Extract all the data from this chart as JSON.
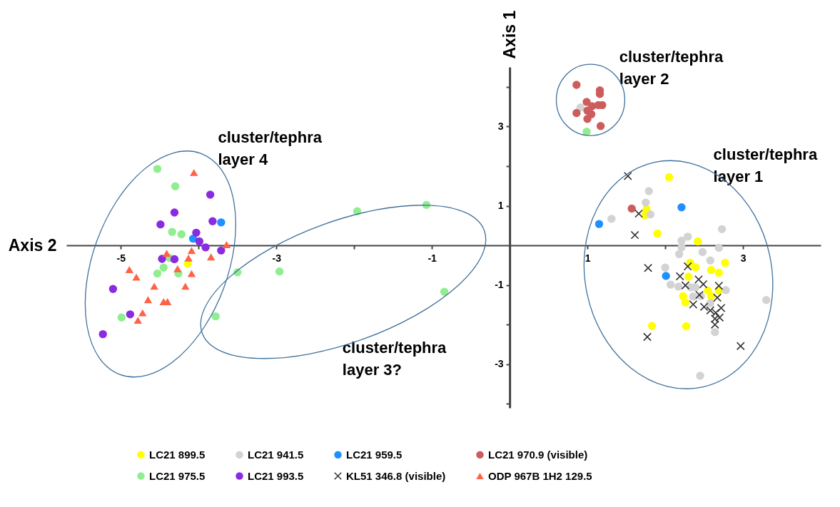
{
  "chart_data": {
    "type": "scatter",
    "xlabel": "Axis 2",
    "ylabel": "Axis 1",
    "xlim": [
      -5.7,
      4
    ],
    "ylim": [
      -4.1,
      4.5
    ],
    "xticks": [
      -5,
      {
        "value": -4,
        "label": null
      },
      -3,
      {
        "value": -2,
        "label": null
      },
      -1,
      1,
      {
        "value": 2,
        "label": null
      },
      3
    ],
    "yticks": [
      {
        "value": -4,
        "label": null
      },
      -3,
      {
        "value": -2,
        "label": null
      },
      -1,
      1,
      {
        "value": 2,
        "label": null
      },
      3,
      {
        "value": 4,
        "label": null
      }
    ],
    "grid": false,
    "legend": "bottom",
    "annotations": [
      "cluster/tephra layer 2",
      "cluster/tephra layer 1",
      "cluster/tephra layer 4",
      "cluster/tephra layer 3?"
    ],
    "series": [
      {
        "name": "LC21 899.5",
        "color": "#ffff00",
        "marker": "circle",
        "x": [
          -4.14,
          2.05,
          1.76,
          1.74,
          1.9,
          2.42,
          2.32,
          2.39,
          2.77,
          2.59,
          2.69,
          2.3,
          2.55,
          2.69,
          2.59,
          2.23,
          2.26,
          1.83,
          2.27
        ],
        "values": [
          -0.46,
          1.72,
          0.91,
          0.76,
          0.3,
          0.1,
          -0.44,
          -0.55,
          -0.44,
          -0.62,
          -0.69,
          -0.79,
          -1.14,
          -1.14,
          -1.28,
          -1.28,
          -1.44,
          -2.03,
          -2.04
        ]
      },
      {
        "name": "LC21 941.5",
        "color": "#d3d3d3",
        "marker": "circle",
        "x": [
          0.91,
          1.79,
          1.75,
          1.81,
          1.31,
          2.29,
          2.21,
          2.21,
          2.18,
          2.0,
          2.69,
          2.48,
          2.58,
          2.07,
          2.17,
          2.33,
          2.39,
          2.78,
          2.36,
          2.58,
          2.46,
          2.64,
          3.3,
          2.45,
          2.73
        ],
        "values": [
          3.48,
          1.37,
          1.08,
          0.78,
          0.67,
          0.22,
          0.12,
          -0.05,
          -0.22,
          -0.56,
          -0.06,
          -0.17,
          -0.38,
          -0.99,
          -1.04,
          -1.06,
          -1.06,
          -1.13,
          -1.29,
          -1.46,
          -1.28,
          -2.19,
          -1.38,
          -3.29,
          0.41
        ]
      },
      {
        "name": "LC21 959.5",
        "color": "#1e90ff",
        "marker": "circle",
        "x": [
          -3.71,
          -4.07,
          1.15,
          2.21,
          2.01
        ],
        "values": [
          0.58,
          0.17,
          0.54,
          0.96,
          -0.77
        ]
      },
      {
        "name": "LC21 970.9 (visible)",
        "color": "#cd5c5c",
        "marker": "circle",
        "x": [
          0.86,
          1.16,
          1.16,
          0.99,
          0.86,
          1.06,
          1.14,
          1.19,
          1.0,
          1.05,
          1.0,
          1.17,
          1.57
        ],
        "values": [
          4.05,
          3.91,
          3.82,
          3.62,
          3.34,
          3.51,
          3.54,
          3.54,
          3.4,
          3.31,
          3.19,
          3.01,
          0.93
        ]
      },
      {
        "name": "LC21 975.5",
        "color": "#90ee90",
        "marker": "circle",
        "x": [
          -4.53,
          -4.3,
          -4.34,
          -4.22,
          -4.37,
          -4.45,
          -4.53,
          -4.26,
          -3.5,
          -4.99,
          -3.78,
          -1.96,
          -1.07,
          -2.96,
          -0.84,
          0.99
        ],
        "values": [
          1.93,
          1.49,
          0.34,
          0.28,
          -0.32,
          -0.56,
          -0.71,
          -0.71,
          -0.68,
          -1.82,
          -1.79,
          0.86,
          1.02,
          -0.66,
          -1.17,
          2.87
        ]
      },
      {
        "name": "LC21 993.5",
        "color": "#8a2be2",
        "marker": "circle",
        "x": [
          -3.85,
          -4.31,
          -4.49,
          -3.82,
          -4.03,
          -3.99,
          -3.91,
          -3.71,
          -4.47,
          -4.31,
          -5.1,
          -4.88,
          -5.23
        ],
        "values": [
          1.28,
          0.83,
          0.53,
          0.61,
          0.32,
          0.1,
          -0.05,
          -0.13,
          -0.34,
          -0.35,
          -1.1,
          -1.74,
          -2.24
        ]
      },
      {
        "name": "KL51 346.8 (visible)",
        "color": "#333333",
        "marker": "cross",
        "x": [
          1.52,
          1.66,
          1.61,
          1.78,
          2.29,
          2.19,
          2.43,
          2.26,
          2.49,
          2.69,
          2.67,
          2.44,
          2.36,
          2.5,
          2.58,
          2.72,
          2.65,
          2.7,
          2.64,
          2.64,
          1.77,
          2.97
        ],
        "values": [
          1.75,
          0.8,
          0.26,
          -0.57,
          -0.53,
          -0.78,
          -0.86,
          -1.01,
          -0.98,
          -1.02,
          -1.32,
          -1.25,
          -1.49,
          -1.55,
          -1.64,
          -1.58,
          -1.7,
          -1.82,
          -1.85,
          -2.0,
          -2.31,
          -2.54
        ]
      },
      {
        "name": "ODP 967B 1H2 129.5",
        "color": "#ff6347",
        "marker": "triangle",
        "x": [
          -4.06,
          -3.64,
          -4.09,
          -3.84,
          -4.41,
          -4.13,
          -4.27,
          -4.09,
          -4.89,
          -4.8,
          -4.57,
          -4.17,
          -4.65,
          -4.45,
          -4.4,
          -4.72,
          -4.78
        ],
        "values": [
          1.84,
          0.02,
          -0.13,
          -0.29,
          -0.2,
          -0.32,
          -0.59,
          -0.71,
          -0.61,
          -0.8,
          -1.03,
          -1.03,
          -1.37,
          -1.42,
          -1.42,
          -1.7,
          -1.89
        ]
      }
    ]
  }
}
